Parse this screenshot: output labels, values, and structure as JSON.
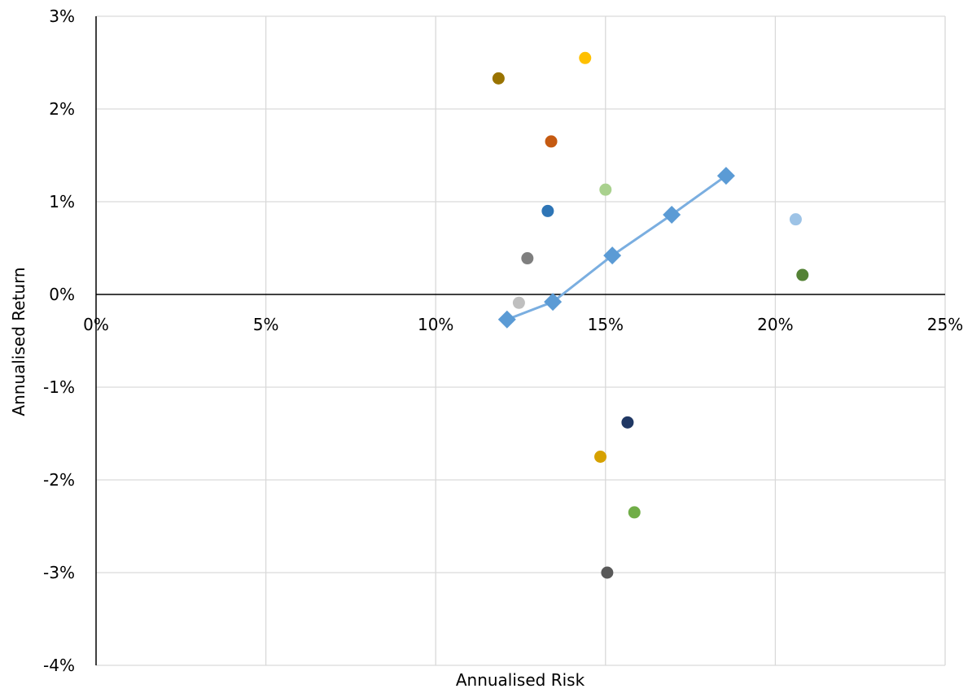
{
  "chart_data": {
    "type": "scatter",
    "title": "",
    "xlabel": "Annualised Risk",
    "ylabel": "Annualised Return",
    "xlim": [
      0,
      25
    ],
    "ylim": [
      -4,
      3
    ],
    "x_ticks": [
      0,
      5,
      10,
      15,
      20,
      25
    ],
    "y_ticks": [
      3,
      2,
      1,
      0,
      -1,
      -2,
      -3,
      -4
    ],
    "x_tick_labels": [
      "0%",
      "5%",
      "10%",
      "15%",
      "20%",
      "25%"
    ],
    "y_tick_labels": [
      "3%",
      "2%",
      "1%",
      "0%",
      "-1%",
      "-2%",
      "-3%",
      "-4%"
    ],
    "grid": true,
    "legend": "none",
    "frontier": {
      "style": "line with diamond markers",
      "color": "#5b9bd5",
      "points": [
        {
          "x": 12.1,
          "y": -0.27
        },
        {
          "x": 13.45,
          "y": -0.08
        },
        {
          "x": 15.2,
          "y": 0.42
        },
        {
          "x": 16.95,
          "y": 0.86
        },
        {
          "x": 18.55,
          "y": 1.28
        }
      ]
    },
    "points": [
      {
        "x": 11.85,
        "y": 2.33,
        "color": "#997300"
      },
      {
        "x": 14.4,
        "y": 2.55,
        "color": "#ffc000"
      },
      {
        "x": 13.4,
        "y": 1.65,
        "color": "#c55a11"
      },
      {
        "x": 15.0,
        "y": 1.13,
        "color": "#a9d18e"
      },
      {
        "x": 13.3,
        "y": 0.9,
        "color": "#2e75b6"
      },
      {
        "x": 12.7,
        "y": 0.39,
        "color": "#7f7f7f"
      },
      {
        "x": 12.45,
        "y": -0.09,
        "color": "#bfbfbf"
      },
      {
        "x": 20.6,
        "y": 0.81,
        "color": "#9dc3e6"
      },
      {
        "x": 20.8,
        "y": 0.21,
        "color": "#548235"
      },
      {
        "x": 15.65,
        "y": -1.38,
        "color": "#203864"
      },
      {
        "x": 14.85,
        "y": -1.75,
        "color": "#d6a100"
      },
      {
        "x": 15.85,
        "y": -2.35,
        "color": "#70ad47"
      },
      {
        "x": 15.05,
        "y": -3.0,
        "color": "#595959"
      }
    ]
  }
}
